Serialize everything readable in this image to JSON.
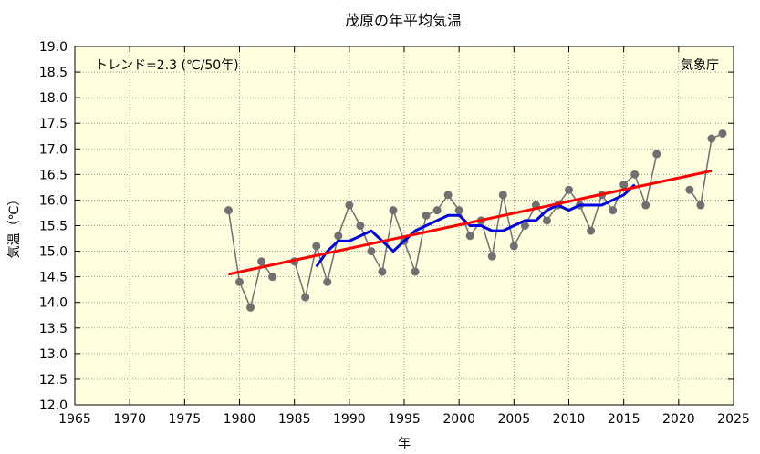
{
  "chart_data": {
    "type": "line",
    "title": "茂原の年平均気温",
    "xlabel": "年",
    "ylabel": "気温（℃）",
    "xlim": [
      1965,
      2025
    ],
    "ylim": [
      12.0,
      19.0
    ],
    "x_ticks": [
      "1965",
      "1970",
      "1975",
      "1980",
      "1985",
      "1990",
      "1995",
      "2000",
      "2005",
      "2010",
      "2015",
      "2020",
      "2025"
    ],
    "y_ticks": [
      "12.0",
      "12.5",
      "13.0",
      "13.5",
      "14.0",
      "14.5",
      "15.0",
      "15.5",
      "16.0",
      "16.5",
      "17.0",
      "17.5",
      "18.0",
      "18.5",
      "19.0"
    ],
    "grid": true,
    "background": "#ffffe0",
    "annotations": {
      "trend": "トレンド=2.3 (℃/50年)",
      "source": "気象庁"
    },
    "series": [
      {
        "role": "annual",
        "color": "#707070",
        "segments": [
          {
            "x": [
              1979,
              1980,
              1981,
              1982,
              1983
            ],
            "y": [
              15.8,
              14.4,
              13.9,
              14.8,
              14.5
            ]
          },
          {
            "x": [
              1985,
              1986,
              1987,
              1988,
              1989,
              1990,
              1991,
              1992,
              1993,
              1994,
              1995,
              1996,
              1997,
              1998,
              1999,
              2000,
              2001,
              2002,
              2003,
              2004,
              2005,
              2006,
              2007,
              2008,
              2009,
              2010,
              2011,
              2012,
              2013,
              2014,
              2015,
              2016,
              2017,
              2018
            ],
            "y": [
              14.8,
              14.1,
              15.1,
              14.4,
              15.3,
              15.9,
              15.5,
              15.0,
              14.6,
              15.8,
              15.2,
              14.6,
              15.7,
              15.8,
              16.1,
              15.8,
              15.3,
              15.6,
              14.9,
              16.1,
              15.1,
              15.5,
              15.9,
              15.6,
              15.9,
              16.2,
              15.9,
              15.4,
              16.1,
              15.8,
              16.3,
              16.5,
              15.9,
              16.9
            ]
          },
          {
            "x": [
              2021,
              2022,
              2023,
              2024
            ],
            "y": [
              16.2,
              15.9,
              17.2,
              17.3
            ]
          }
        ]
      },
      {
        "role": "moving-average",
        "color": "#0000e0",
        "x": [
          1987,
          1988,
          1989,
          1990,
          1991,
          1992,
          1993,
          1994,
          1995,
          1996,
          1997,
          1998,
          1999,
          2000,
          2001,
          2002,
          2003,
          2004,
          2005,
          2006,
          2007,
          2008,
          2009,
          2010,
          2011,
          2012,
          2013,
          2014,
          2015,
          2016
        ],
        "y": [
          14.7,
          15.0,
          15.2,
          15.2,
          15.3,
          15.4,
          15.2,
          15.0,
          15.2,
          15.4,
          15.5,
          15.6,
          15.7,
          15.7,
          15.5,
          15.5,
          15.4,
          15.4,
          15.5,
          15.6,
          15.6,
          15.8,
          15.9,
          15.8,
          15.9,
          15.9,
          15.9,
          16.0,
          16.1,
          16.3
        ]
      },
      {
        "role": "trend",
        "color": "#ff0000",
        "x": [
          1979,
          2023
        ],
        "y": [
          14.55,
          16.57
        ]
      }
    ]
  }
}
